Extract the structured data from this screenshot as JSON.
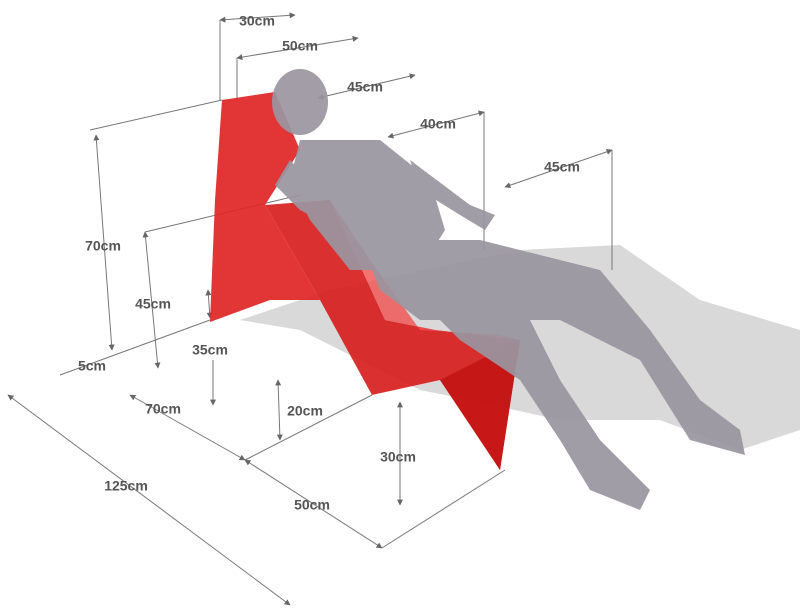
{
  "dimensions": {
    "top_30": "30cm",
    "top_50": "50cm",
    "top_45": "45cm",
    "top_40": "40cm",
    "top_45_right": "45cm",
    "height_70": "70cm",
    "height_45": "45cm",
    "base_5": "5cm",
    "base_35": "35cm",
    "base_70": "70cm",
    "height_20": "20cm",
    "height_30": "30cm",
    "length_125": "125cm",
    "base_50": "50cm"
  }
}
